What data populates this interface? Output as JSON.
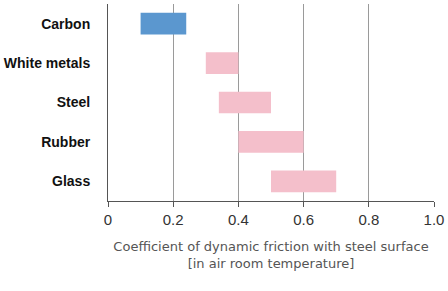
{
  "chart_data": {
    "type": "bar",
    "orientation": "horizontal",
    "categories": [
      "Carbon",
      "White metals",
      "Steel",
      "Rubber",
      "Glass"
    ],
    "values": [
      [
        0.1,
        0.24
      ],
      [
        0.3,
        0.4
      ],
      [
        0.34,
        0.5
      ],
      [
        0.4,
        0.6
      ],
      [
        0.5,
        0.7
      ]
    ],
    "colors": [
      "#5b97cf",
      "#f4bfcb",
      "#f4bfcb",
      "#f4bfcb",
      "#f4bfcb"
    ],
    "xlabel": [
      "Coefficient of dynamic friction with steel surface",
      "[in air room temperature]"
    ],
    "xlim": [
      0,
      1
    ],
    "xticks": [
      0,
      0.2,
      0.4,
      0.6,
      0.8,
      {
        "value": 1,
        "label": "1.0"
      }
    ],
    "grid": true
  }
}
